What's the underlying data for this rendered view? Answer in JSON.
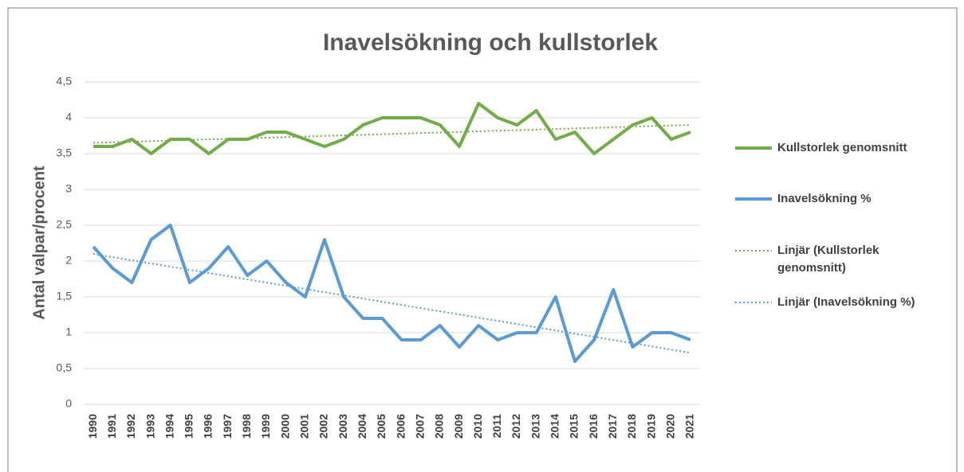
{
  "chart_data": {
    "type": "line",
    "title": "Inavelsökning och kullstorlek",
    "y_label": "Antal valpar/procent",
    "categories": [
      "1990",
      "1991",
      "1992",
      "1993",
      "1994",
      "1995",
      "1996",
      "1997",
      "1998",
      "1999",
      "2000",
      "2001",
      "2002",
      "2003",
      "2004",
      "2005",
      "2006",
      "2007",
      "2008",
      "2009",
      "2010",
      "2011",
      "2012",
      "2013",
      "2014",
      "2015",
      "2016",
      "2017",
      "2018",
      "2019",
      "2020",
      "2021"
    ],
    "series": [
      {
        "name": "Kullstorlek genomsnitt",
        "color": "#70ad47",
        "values": [
          3.6,
          3.6,
          3.7,
          3.5,
          3.7,
          3.7,
          3.5,
          3.7,
          3.7,
          3.8,
          3.8,
          3.7,
          3.6,
          3.7,
          3.9,
          4.0,
          4.0,
          4.0,
          3.9,
          3.6,
          4.2,
          4.0,
          3.9,
          4.1,
          3.7,
          3.8,
          3.5,
          3.7,
          3.9,
          4.0,
          3.7,
          3.8
        ]
      },
      {
        "name": "Inavelsökning %",
        "color": "#5b9bd5",
        "values": [
          2.2,
          1.9,
          1.7,
          2.3,
          2.5,
          1.7,
          1.9,
          2.2,
          1.8,
          2.0,
          1.7,
          1.5,
          2.3,
          1.5,
          1.2,
          1.2,
          0.9,
          0.9,
          1.1,
          0.8,
          1.1,
          0.9,
          1.0,
          1.0,
          1.5,
          0.6,
          0.9,
          1.6,
          0.8,
          1.0,
          1.0,
          0.9
        ]
      }
    ],
    "trendlines": [
      {
        "name": "Linjär (Kullstorlek genomsnitt)",
        "color": "#70ad47",
        "values": [
          3.65,
          3.9
        ]
      },
      {
        "name": "Linjär (Inavelsökning %)",
        "color": "#5b9bd5",
        "values": [
          2.1,
          0.72
        ]
      }
    ],
    "ylim": [
      0,
      4.5
    ],
    "yticks": [
      0,
      {
        "value": 0.5,
        "label": "0,5"
      },
      1,
      {
        "value": 1.5,
        "label": "1,5"
      },
      2,
      {
        "value": 2.5,
        "label": "2,5"
      },
      3,
      {
        "value": 3.5,
        "label": "3,5"
      },
      4,
      {
        "value": 4.5,
        "label": "4,5"
      }
    ],
    "grid": true,
    "legend": "right"
  }
}
